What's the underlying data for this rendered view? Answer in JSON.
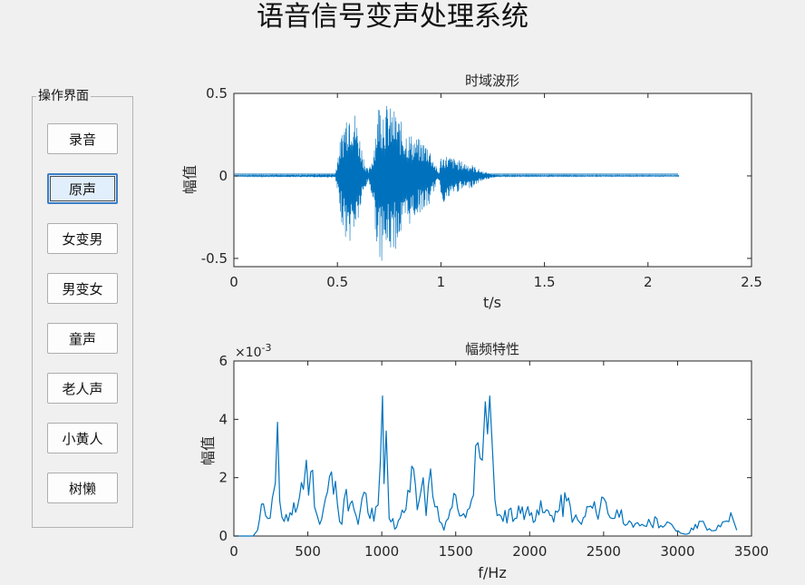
{
  "app_title": "语音信号变声处理系统",
  "panel": {
    "title": "操作界面",
    "buttons": [
      "录音",
      "原声",
      "女变男",
      "男变女",
      "童声",
      "老人声",
      "小黄人",
      "树懒"
    ],
    "active_index": 1
  },
  "colors": {
    "signal": "#0072bd",
    "axes": "#262626",
    "background": "#f0f0f0"
  },
  "chart_data": [
    {
      "type": "line",
      "title": "时域波形",
      "xlabel": "t/s",
      "ylabel": "幅值",
      "xlim": [
        0,
        2.5
      ],
      "ylim": [
        -0.55,
        0.5
      ],
      "xticks": [
        "0",
        "0.5",
        "1",
        "1.5",
        "2",
        "2.5"
      ],
      "yticks": [
        "-0.5",
        "0",
        "0.5"
      ],
      "series": [
        {
          "kind": "envelope",
          "t": [
            0,
            0.49,
            0.5,
            0.52,
            0.55,
            0.57,
            0.6,
            0.63,
            0.65,
            0.67,
            0.7,
            0.72,
            0.75,
            0.78,
            0.82,
            0.86,
            0.9,
            0.94,
            0.97,
            0.99,
            1.0,
            1.02,
            1.06,
            1.1,
            1.15,
            1.2,
            1.25,
            1.28,
            2.15
          ],
          "upper": [
            0.003,
            0.01,
            0.12,
            0.26,
            0.45,
            0.47,
            0.3,
            0.1,
            0.03,
            0.12,
            0.48,
            0.46,
            0.42,
            0.4,
            0.3,
            0.25,
            0.22,
            0.2,
            0.08,
            0.02,
            0.12,
            0.13,
            0.11,
            0.09,
            0.07,
            0.03,
            0.01,
            0.004,
            0.003
          ],
          "lower": [
            -0.003,
            -0.01,
            -0.12,
            -0.28,
            -0.44,
            -0.38,
            -0.28,
            -0.1,
            -0.03,
            -0.15,
            -0.55,
            -0.5,
            -0.47,
            -0.45,
            -0.35,
            -0.28,
            -0.22,
            -0.2,
            -0.08,
            -0.02,
            -0.12,
            -0.18,
            -0.11,
            -0.09,
            -0.07,
            -0.03,
            -0.01,
            -0.004,
            -0.003
          ]
        }
      ]
    },
    {
      "type": "line",
      "title": "幅频特性",
      "xlabel": "f/Hz",
      "ylabel": "幅值",
      "exponent_label": "×10",
      "exponent_value": "-3",
      "xlim": [
        0,
        3500
      ],
      "ylim": [
        0,
        6
      ],
      "xticks": [
        "0",
        "500",
        "1000",
        "1500",
        "2000",
        "2500",
        "3000",
        "3500"
      ],
      "yticks": [
        "0",
        "2",
        "4",
        "6"
      ],
      "series": [
        {
          "kind": "spectrum",
          "f": [
            0,
            130,
            160,
            200,
            230,
            260,
            280,
            295,
            310,
            340,
            380,
            430,
            470,
            490,
            505,
            520,
            545,
            580,
            620,
            660,
            700,
            730,
            760,
            800,
            840,
            880,
            920,
            960,
            990,
            1005,
            1015,
            1030,
            1050,
            1100,
            1150,
            1190,
            1215,
            1240,
            1260,
            1280,
            1300,
            1330,
            1360,
            1390,
            1420,
            1450,
            1500,
            1540,
            1580,
            1620,
            1650,
            1680,
            1700,
            1715,
            1730,
            1750,
            1780,
            1820,
            1860,
            1900,
            1950,
            2000,
            2050,
            2100,
            2150,
            2200,
            2250,
            2300,
            2350,
            2400,
            2450,
            2500,
            2560,
            2620,
            2660,
            2700,
            2760,
            2820,
            2860,
            2900,
            2960,
            3020,
            3080,
            3120,
            3160,
            3200,
            3260,
            3320,
            3360,
            3380,
            3400
          ],
          "amp": [
            0,
            0,
            0.2,
            1.1,
            0.6,
            1.3,
            1.8,
            3.9,
            1.2,
            0.5,
            0.8,
            1.0,
            1.6,
            2.6,
            1.4,
            2.2,
            1.0,
            0.4,
            1.3,
            2.2,
            1.1,
            0.4,
            1.6,
            1.2,
            0.4,
            1.5,
            0.6,
            1.0,
            2.5,
            4.8,
            1.8,
            3.6,
            0.6,
            0.3,
            0.8,
            1.5,
            2.3,
            0.9,
            1.4,
            2.0,
            0.7,
            2.3,
            1.0,
            0.5,
            0.2,
            0.6,
            1.4,
            0.7,
            0.9,
            1.4,
            3.2,
            2.6,
            4.6,
            3.5,
            4.8,
            2.8,
            0.7,
            0.5,
            0.9,
            0.6,
            1.0,
            0.7,
            0.9,
            0.8,
            0.7,
            0.9,
            1.2,
            0.6,
            0.4,
            1.0,
            0.8,
            1.3,
            0.6,
            0.9,
            0.4,
            0.3,
            0.4,
            0.4,
            0.6,
            0.3,
            0.4,
            0.1,
            0.1,
            0.4,
            0.5,
            0.2,
            0.2,
            0.5,
            0.8,
            0.5,
            0.2
          ]
        }
      ]
    }
  ]
}
